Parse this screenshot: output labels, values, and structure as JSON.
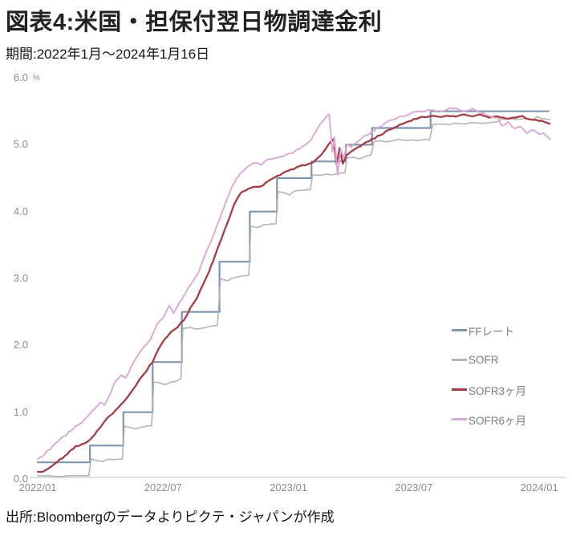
{
  "header": {
    "title": "図表4:米国・担保付翌日物調達金利",
    "period": "期間:2022年1月～2024年1月16日"
  },
  "footer": {
    "source": "出所:Bloombergのデータよりピクテ・ジャパンが作成"
  },
  "chart_data": {
    "type": "line",
    "title": "図表4:米国・担保付翌日物調達金利",
    "subtitle": "期間:2022年1月～2024年1月16日",
    "x_unit": "months since 2022/01",
    "y_unit": "%",
    "grid": false,
    "legend_position": "right-middle",
    "x_axis": {
      "range": [
        0,
        24.6
      ],
      "ticks": [
        {
          "label": "2022/01",
          "t": 0
        },
        {
          "label": "2022/07",
          "t": 6
        },
        {
          "label": "2023/01",
          "t": 12
        },
        {
          "label": "2023/07",
          "t": 18
        },
        {
          "label": "2024/01",
          "t": 24
        }
      ]
    },
    "y_axis": {
      "range": [
        0,
        6
      ],
      "unit": "%",
      "ticks": [
        {
          "label": "0.0",
          "v": 0
        },
        {
          "label": "1.0",
          "v": 1
        },
        {
          "label": "2.0",
          "v": 2
        },
        {
          "label": "3.0",
          "v": 3
        },
        {
          "label": "4.0",
          "v": 4
        },
        {
          "label": "5.0",
          "v": 5
        },
        {
          "label": "6.0",
          "v": 6
        }
      ]
    },
    "series": [
      {
        "name": "FFレート",
        "color": "#7e95af",
        "style": "step",
        "width": 2.2,
        "points": [
          [
            0,
            0.25
          ],
          [
            2.5,
            0.5
          ],
          [
            4.1,
            1.0
          ],
          [
            5.5,
            1.75
          ],
          [
            6.9,
            2.5
          ],
          [
            8.7,
            3.25
          ],
          [
            10.15,
            4.0
          ],
          [
            11.45,
            4.5
          ],
          [
            13.1,
            4.75
          ],
          [
            14.75,
            5.0
          ],
          [
            16.0,
            5.25
          ],
          [
            18.8,
            5.5
          ],
          [
            24.45,
            5.5
          ]
        ]
      },
      {
        "name": "SOFR",
        "color": "#b4b4b4",
        "style": "line",
        "width": 1.6,
        "points": [
          [
            0,
            0.05
          ],
          [
            0.5,
            0.05
          ],
          [
            1,
            0.04
          ],
          [
            1.5,
            0.05
          ],
          [
            2,
            0.05
          ],
          [
            2.45,
            0.05
          ],
          [
            2.55,
            0.3
          ],
          [
            2.8,
            0.28
          ],
          [
            3.1,
            0.26
          ],
          [
            3.3,
            0.29
          ],
          [
            3.7,
            0.29
          ],
          [
            4.05,
            0.3
          ],
          [
            4.15,
            0.79
          ],
          [
            4.4,
            0.77
          ],
          [
            4.7,
            0.75
          ],
          [
            4.9,
            0.77
          ],
          [
            5.2,
            0.79
          ],
          [
            5.45,
            0.8
          ],
          [
            5.55,
            1.45
          ],
          [
            5.8,
            1.44
          ],
          [
            6.1,
            1.41
          ],
          [
            6.4,
            1.45
          ],
          [
            6.7,
            1.47
          ],
          [
            6.85,
            1.5
          ],
          [
            6.95,
            2.25
          ],
          [
            7.3,
            2.27
          ],
          [
            7.6,
            2.24
          ],
          [
            7.9,
            2.26
          ],
          [
            8.2,
            2.28
          ],
          [
            8.6,
            2.3
          ],
          [
            8.75,
            3.0
          ],
          [
            9.05,
            2.96
          ],
          [
            9.3,
            3.0
          ],
          [
            9.6,
            3.03
          ],
          [
            10.1,
            3.05
          ],
          [
            10.2,
            3.78
          ],
          [
            10.5,
            3.76
          ],
          [
            10.8,
            3.8
          ],
          [
            11.1,
            3.81
          ],
          [
            11.4,
            3.82
          ],
          [
            11.5,
            4.3
          ],
          [
            11.8,
            4.28
          ],
          [
            12.05,
            4.25
          ],
          [
            12.3,
            4.31
          ],
          [
            12.7,
            4.32
          ],
          [
            13.05,
            4.33
          ],
          [
            13.15,
            4.55
          ],
          [
            13.5,
            4.54
          ],
          [
            13.8,
            4.56
          ],
          [
            14.1,
            4.55
          ],
          [
            14.4,
            4.57
          ],
          [
            14.7,
            4.58
          ],
          [
            14.8,
            4.8
          ],
          [
            15.1,
            4.81
          ],
          [
            15.4,
            4.79
          ],
          [
            15.7,
            4.83
          ],
          [
            15.95,
            4.85
          ],
          [
            16.1,
            5.05
          ],
          [
            16.4,
            5.06
          ],
          [
            16.7,
            5.04
          ],
          [
            17,
            5.06
          ],
          [
            17.3,
            5.08
          ],
          [
            17.6,
            5.06
          ],
          [
            17.9,
            5.07
          ],
          [
            18.2,
            5.06
          ],
          [
            18.5,
            5.08
          ],
          [
            18.75,
            5.07
          ],
          [
            18.9,
            5.3
          ],
          [
            19.3,
            5.31
          ],
          [
            19.7,
            5.3
          ],
          [
            20,
            5.32
          ],
          [
            20.4,
            5.31
          ],
          [
            20.8,
            5.33
          ],
          [
            21.2,
            5.32
          ],
          [
            21.6,
            5.33
          ],
          [
            22,
            5.34
          ],
          [
            22.2,
            5.38
          ],
          [
            22.5,
            5.39
          ],
          [
            22.9,
            5.38
          ],
          [
            23.3,
            5.39
          ],
          [
            23.7,
            5.38
          ],
          [
            23.95,
            5.42
          ],
          [
            24.1,
            5.39
          ],
          [
            24.5,
            5.38
          ]
        ]
      },
      {
        "name": "SOFR3ヶ月",
        "color": "#a63c46",
        "style": "line",
        "width": 2.3,
        "points": [
          [
            0,
            0.1
          ],
          [
            0.3,
            0.12
          ],
          [
            0.6,
            0.18
          ],
          [
            0.9,
            0.25
          ],
          [
            1.2,
            0.32
          ],
          [
            1.5,
            0.4
          ],
          [
            1.8,
            0.48
          ],
          [
            2.1,
            0.52
          ],
          [
            2.4,
            0.56
          ],
          [
            2.7,
            0.65
          ],
          [
            3,
            0.78
          ],
          [
            3.3,
            0.9
          ],
          [
            3.7,
            1.02
          ],
          [
            4,
            1.12
          ],
          [
            4.3,
            1.22
          ],
          [
            4.6,
            1.35
          ],
          [
            4.9,
            1.5
          ],
          [
            5.2,
            1.62
          ],
          [
            5.5,
            1.76
          ],
          [
            5.8,
            1.95
          ],
          [
            6.1,
            2.1
          ],
          [
            6.4,
            2.2
          ],
          [
            6.7,
            2.28
          ],
          [
            7,
            2.38
          ],
          [
            7.3,
            2.55
          ],
          [
            7.6,
            2.7
          ],
          [
            7.9,
            2.9
          ],
          [
            8.2,
            3.1
          ],
          [
            8.5,
            3.35
          ],
          [
            8.8,
            3.6
          ],
          [
            9.1,
            3.85
          ],
          [
            9.4,
            4.1
          ],
          [
            9.7,
            4.28
          ],
          [
            10,
            4.33
          ],
          [
            10.3,
            4.36
          ],
          [
            10.7,
            4.38
          ],
          [
            11,
            4.45
          ],
          [
            11.3,
            4.5
          ],
          [
            11.6,
            4.55
          ],
          [
            12,
            4.61
          ],
          [
            12.4,
            4.66
          ],
          [
            12.8,
            4.7
          ],
          [
            13.2,
            4.74
          ],
          [
            13.6,
            4.85
          ],
          [
            13.9,
            5.0
          ],
          [
            14.15,
            5.09
          ],
          [
            14.3,
            4.7
          ],
          [
            14.45,
            4.95
          ],
          [
            14.6,
            4.72
          ],
          [
            14.8,
            4.85
          ],
          [
            15,
            4.9
          ],
          [
            15.3,
            4.95
          ],
          [
            15.6,
            5.02
          ],
          [
            16,
            5.08
          ],
          [
            16.4,
            5.15
          ],
          [
            16.8,
            5.22
          ],
          [
            17.2,
            5.28
          ],
          [
            17.6,
            5.33
          ],
          [
            18,
            5.38
          ],
          [
            18.4,
            5.41
          ],
          [
            18.8,
            5.43
          ],
          [
            19.2,
            5.41
          ],
          [
            19.6,
            5.44
          ],
          [
            20,
            5.42
          ],
          [
            20.4,
            5.45
          ],
          [
            20.8,
            5.43
          ],
          [
            21.2,
            5.45
          ],
          [
            21.6,
            5.41
          ],
          [
            22,
            5.43
          ],
          [
            22.4,
            5.39
          ],
          [
            22.8,
            5.41
          ],
          [
            23.2,
            5.42
          ],
          [
            23.6,
            5.38
          ],
          [
            24,
            5.36
          ],
          [
            24.5,
            5.32
          ]
        ]
      },
      {
        "name": "SOFR6ヶ月",
        "color": "#d9a9d4",
        "style": "line",
        "width": 1.9,
        "points": [
          [
            0,
            0.3
          ],
          [
            0.3,
            0.36
          ],
          [
            0.6,
            0.45
          ],
          [
            0.9,
            0.55
          ],
          [
            1.2,
            0.63
          ],
          [
            1.5,
            0.7
          ],
          [
            1.8,
            0.78
          ],
          [
            2.1,
            0.85
          ],
          [
            2.4,
            0.95
          ],
          [
            2.7,
            1.05
          ],
          [
            3,
            1.15
          ],
          [
            3.2,
            1.1
          ],
          [
            3.5,
            1.3
          ],
          [
            3.7,
            1.46
          ],
          [
            4,
            1.55
          ],
          [
            4.2,
            1.5
          ],
          [
            4.5,
            1.7
          ],
          [
            4.8,
            1.85
          ],
          [
            5.1,
            1.98
          ],
          [
            5.4,
            2.1
          ],
          [
            5.7,
            2.3
          ],
          [
            6,
            2.42
          ],
          [
            6.3,
            2.6
          ],
          [
            6.5,
            2.48
          ],
          [
            6.8,
            2.65
          ],
          [
            7.1,
            2.8
          ],
          [
            7.4,
            2.95
          ],
          [
            7.7,
            3.1
          ],
          [
            8,
            3.35
          ],
          [
            8.3,
            3.55
          ],
          [
            8.6,
            3.8
          ],
          [
            8.9,
            4.05
          ],
          [
            9.2,
            4.3
          ],
          [
            9.5,
            4.5
          ],
          [
            9.8,
            4.6
          ],
          [
            10.1,
            4.68
          ],
          [
            10.4,
            4.73
          ],
          [
            10.7,
            4.7
          ],
          [
            11,
            4.78
          ],
          [
            11.3,
            4.8
          ],
          [
            11.6,
            4.82
          ],
          [
            12,
            4.86
          ],
          [
            12.4,
            4.92
          ],
          [
            12.8,
            5.0
          ],
          [
            13.1,
            5.08
          ],
          [
            13.4,
            5.25
          ],
          [
            13.7,
            5.38
          ],
          [
            13.95,
            5.46
          ],
          [
            14.1,
            4.9
          ],
          [
            14.2,
            5.12
          ],
          [
            14.35,
            4.55
          ],
          [
            14.5,
            4.93
          ],
          [
            14.65,
            4.8
          ],
          [
            14.8,
            5.0
          ],
          [
            15,
            4.97
          ],
          [
            15.3,
            5.05
          ],
          [
            15.6,
            5.12
          ],
          [
            16,
            5.18
          ],
          [
            16.4,
            5.28
          ],
          [
            16.8,
            5.35
          ],
          [
            17.2,
            5.4
          ],
          [
            17.6,
            5.44
          ],
          [
            18,
            5.48
          ],
          [
            18.4,
            5.5
          ],
          [
            18.8,
            5.52
          ],
          [
            19.2,
            5.5
          ],
          [
            19.6,
            5.53
          ],
          [
            20,
            5.55
          ],
          [
            20.4,
            5.5
          ],
          [
            20.8,
            5.53
          ],
          [
            21.2,
            5.48
          ],
          [
            21.6,
            5.44
          ],
          [
            22,
            5.4
          ],
          [
            22.2,
            5.28
          ],
          [
            22.5,
            5.33
          ],
          [
            22.8,
            5.25
          ],
          [
            23.1,
            5.28
          ],
          [
            23.4,
            5.18
          ],
          [
            23.7,
            5.22
          ],
          [
            24,
            5.15
          ],
          [
            24.2,
            5.18
          ],
          [
            24.5,
            5.08
          ]
        ]
      }
    ],
    "legend": [
      "FFレート",
      "SOFR",
      "SOFR3ヶ月",
      "SOFR6ヶ月"
    ]
  }
}
